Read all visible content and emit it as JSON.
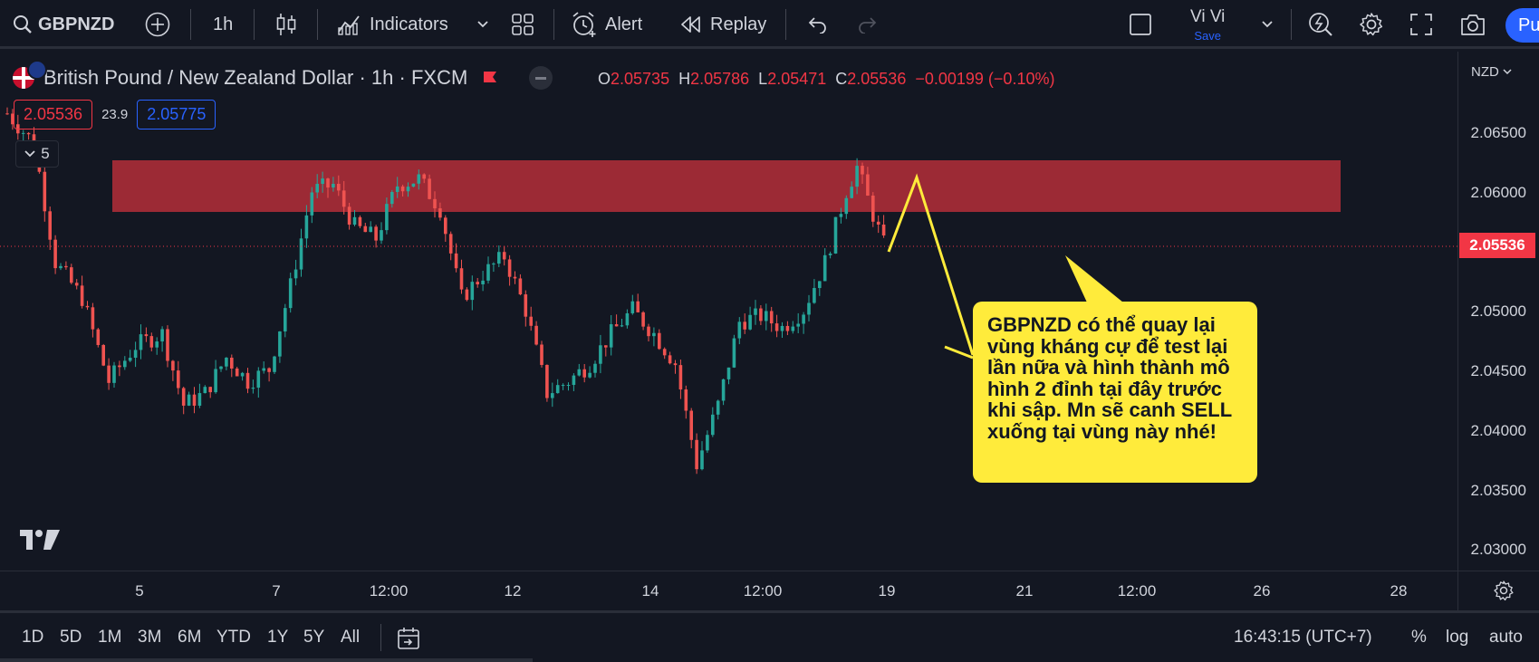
{
  "toolbar": {
    "symbol": "GBPNZD",
    "interval": "1h",
    "indicators_label": "Indicators",
    "alert_label": "Alert",
    "replay_label": "Replay",
    "user_name": "Vi Vi",
    "save_label": "Save",
    "publish_label": "Pu"
  },
  "legend": {
    "title": "British Pound / New Zealand Dollar · 1h · FXCM",
    "ohlc": [
      {
        "k": "O",
        "v": "2.05735"
      },
      {
        "k": "H",
        "v": "2.05786"
      },
      {
        "k": "L",
        "v": "2.05471"
      },
      {
        "k": "C",
        "v": "2.05536"
      }
    ],
    "change": "−0.00199 (−0.10%)",
    "bid": "2.05536",
    "spread": "23.9",
    "ask": "2.05775",
    "indicator_count": "5"
  },
  "price_axis": {
    "currency": "NZD",
    "ticks": [
      "2.06500",
      "2.06000",
      "2.05500",
      "2.05000",
      "2.04500",
      "2.04000",
      "2.03500",
      "2.03000"
    ],
    "last_price": "2.05536"
  },
  "time_axis": {
    "ticks": [
      "5",
      "7",
      "12:00",
      "12",
      "14",
      "12:00",
      "19",
      "21",
      "12:00",
      "26",
      "28"
    ]
  },
  "annotation": {
    "text": "GBPNZD có thể quay lại vùng kháng cự để test lại lần nữa và hình thành mô hình 2 đỉnh tại đây trước khi sập. Mn sẽ canh SELL xuống tại vùng này nhé!"
  },
  "bottom": {
    "ranges": [
      "1D",
      "5D",
      "1M",
      "3M",
      "6M",
      "YTD",
      "1Y",
      "5Y",
      "All"
    ],
    "clock": "16:43:15 (UTC+7)",
    "percent": "%",
    "log": "log",
    "auto": "auto"
  },
  "colors": {
    "background": "#131722",
    "up": "#26a69a",
    "down": "#ef5350",
    "zone": "#9c2a35",
    "annotation": "#ffeb3b",
    "accent": "#2962ff"
  },
  "chart_data": {
    "type": "candlestick",
    "symbol": "GBPNZD",
    "timeframe": "1h",
    "ylim": [
      2.028,
      2.068
    ],
    "resistance_zone": [
      2.0582,
      2.0625
    ],
    "close_path": [
      [
        0,
        2.0665
      ],
      [
        5,
        2.064
      ],
      [
        9,
        2.054
      ],
      [
        14,
        2.051
      ],
      [
        19,
        2.044
      ],
      [
        24,
        2.047
      ],
      [
        29,
        2.048
      ],
      [
        33,
        2.042
      ],
      [
        37,
        2.043
      ],
      [
        41,
        2.046
      ],
      [
        45,
        2.044
      ],
      [
        49,
        2.045
      ],
      [
        53,
        2.052
      ],
      [
        57,
        2.06
      ],
      [
        61,
        2.0605
      ],
      [
        65,
        2.057
      ],
      [
        69,
        2.056
      ],
      [
        73,
        2.0605
      ],
      [
        77,
        2.061
      ],
      [
        81,
        2.0585
      ],
      [
        85,
        2.051
      ],
      [
        89,
        2.053
      ],
      [
        93,
        2.0545
      ],
      [
        97,
        2.05
      ],
      [
        101,
        2.043
      ],
      [
        105,
        2.044
      ],
      [
        109,
        2.0455
      ],
      [
        113,
        2.048
      ],
      [
        117,
        2.05
      ],
      [
        121,
        2.048
      ],
      [
        125,
        2.0455
      ],
      [
        129,
        2.037
      ],
      [
        133,
        2.042
      ],
      [
        137,
        2.049
      ],
      [
        141,
        2.0495
      ],
      [
        145,
        2.0485
      ],
      [
        149,
        2.05
      ],
      [
        153,
        2.054
      ],
      [
        157,
        2.06
      ],
      [
        159,
        2.062
      ],
      [
        162,
        2.058
      ],
      [
        164,
        2.0555
      ]
    ]
  }
}
